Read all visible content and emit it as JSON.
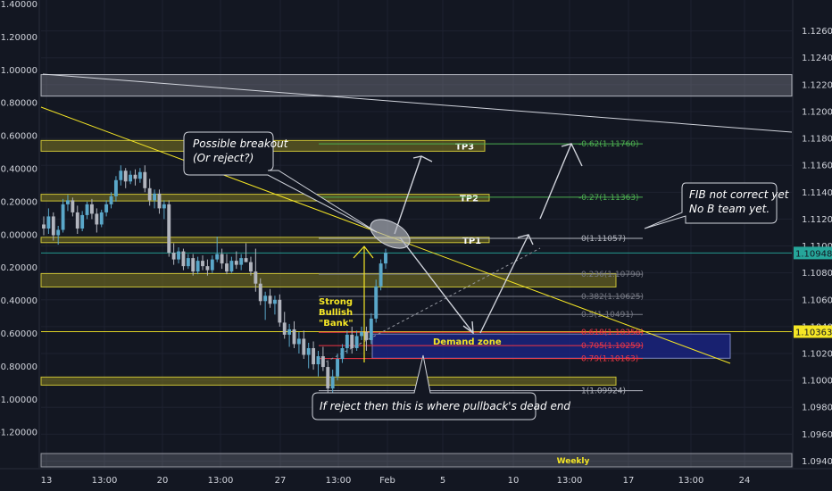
{
  "chart_data": {
    "type": "candlestick",
    "left_axis_ticks": [
      "1.40000",
      "1.20000",
      "1.00000",
      "0.80000",
      "0.60000",
      "0.40000",
      "0.20000",
      "0.00000",
      "-0.20000",
      "-0.40000",
      "-0.60000",
      "-0.80000",
      "-1.00000",
      "-1.20000"
    ],
    "right_axis_ticks": [
      "1.12600",
      "1.12400",
      "1.12200",
      "1.12000",
      "1.11800",
      "1.11600",
      "1.11400",
      "1.11200",
      "1.11000",
      "1.10800",
      "1.10600",
      "1.10400",
      "1.10200",
      "1.10000",
      "1.09800",
      "1.09600",
      "1.09400"
    ],
    "right_axis_range": [
      1.0935,
      1.1283
    ],
    "x_ticks": [
      "13",
      "13:00",
      "20",
      "13:00",
      "27",
      "13:00",
      "Feb",
      "5",
      "10",
      "13:00",
      "17",
      "13:00",
      "24"
    ],
    "price_tags": [
      {
        "value": 1.10948,
        "label": "1.10948",
        "color": "#26a69a"
      },
      {
        "value": 1.10363,
        "label": "1.10363",
        "color": "#f5e625"
      }
    ],
    "zones": [
      {
        "name": "TP3",
        "low": 1.11705,
        "high": 1.11785
      },
      {
        "name": "TP2",
        "low": 1.11335,
        "high": 1.11385
      },
      {
        "name": "TP1",
        "low": 1.11025,
        "high": 1.11065
      },
      {
        "name": "",
        "low": 1.10695,
        "high": 1.10795
      },
      {
        "name": "",
        "low": 1.09965,
        "high": 1.10025
      },
      {
        "name": "",
        "low": 1.12115,
        "high": 1.12275
      }
    ],
    "demand_zone": {
      "label": "Demand zone",
      "low": 1.10165,
      "high": 1.10345
    },
    "fib_levels": [
      {
        "label": "-0.62(1.11760)",
        "value": 1.1176,
        "color": "#4caf50"
      },
      {
        "label": "-0.27(1.11363)",
        "value": 1.11363,
        "color": "#4caf50"
      },
      {
        "label": "0(1.11057)",
        "value": 1.11057,
        "color": "#b2b5be"
      },
      {
        "label": "0.236(1.10790)",
        "value": 1.1079,
        "color": "#787b86"
      },
      {
        "label": "0.382(1.10625)",
        "value": 1.10625,
        "color": "#787b86"
      },
      {
        "label": "0.5(1.10491)",
        "value": 1.10491,
        "color": "#787b86"
      },
      {
        "label": "0.618(1.10358)",
        "value": 1.10358,
        "color": "#f23645"
      },
      {
        "label": "0.705(1.10259)",
        "value": 1.10259,
        "color": "#f23645"
      },
      {
        "label": "0.79(1.10163)",
        "value": 1.10163,
        "color": "#f23645"
      },
      {
        "label": "1(1.09924)",
        "value": 1.09924,
        "color": "#b2b5be"
      }
    ],
    "annotations": {
      "breakout": [
        "Possible breakout",
        "(Or reject?)"
      ],
      "fib_note": [
        "FIB not correct yet",
        "No B team yet."
      ],
      "reject": "If reject then this is where pullback's dead end",
      "strong": [
        "Strong",
        "Bullish",
        "\"Bank\""
      ],
      "weekly": "Weekly"
    },
    "candles": [
      [
        1.1116,
        1.1122,
        1.1108,
        1.1113
      ],
      [
        1.1113,
        1.1128,
        1.1109,
        1.1122
      ],
      [
        1.1122,
        1.1125,
        1.1104,
        1.1108
      ],
      [
        1.1108,
        1.1115,
        1.1101,
        1.1112
      ],
      [
        1.1112,
        1.1135,
        1.111,
        1.1131
      ],
      [
        1.1131,
        1.1138,
        1.1126,
        1.1134
      ],
      [
        1.1134,
        1.1136,
        1.1122,
        1.1125
      ],
      [
        1.1125,
        1.113,
        1.1109,
        1.1113
      ],
      [
        1.1113,
        1.1126,
        1.1111,
        1.1123
      ],
      [
        1.1123,
        1.1133,
        1.112,
        1.1131
      ],
      [
        1.1131,
        1.1135,
        1.112,
        1.1124
      ],
      [
        1.1124,
        1.1128,
        1.111,
        1.1116
      ],
      [
        1.1116,
        1.1127,
        1.1114,
        1.1125
      ],
      [
        1.1125,
        1.1134,
        1.1122,
        1.1131
      ],
      [
        1.1131,
        1.114,
        1.1128,
        1.1137
      ],
      [
        1.1137,
        1.1152,
        1.1133,
        1.1149
      ],
      [
        1.1149,
        1.116,
        1.1145,
        1.1156
      ],
      [
        1.1156,
        1.1158,
        1.1143,
        1.1148
      ],
      [
        1.1148,
        1.1156,
        1.1146,
        1.1153
      ],
      [
        1.1153,
        1.1157,
        1.1145,
        1.115
      ],
      [
        1.115,
        1.1158,
        1.1147,
        1.1155
      ],
      [
        1.1155,
        1.116,
        1.114,
        1.1143
      ],
      [
        1.1143,
        1.115,
        1.113,
        1.1134
      ],
      [
        1.1134,
        1.1142,
        1.1128,
        1.1139
      ],
      [
        1.1139,
        1.1142,
        1.1124,
        1.1128
      ],
      [
        1.1128,
        1.1134,
        1.112,
        1.1131
      ],
      [
        1.1131,
        1.1134,
        1.1092,
        1.1095
      ],
      [
        1.1095,
        1.1102,
        1.1086,
        1.109
      ],
      [
        1.109,
        1.1099,
        1.1087,
        1.1096
      ],
      [
        1.1096,
        1.1098,
        1.1082,
        1.1085
      ],
      [
        1.1085,
        1.1094,
        1.1083,
        1.1091
      ],
      [
        1.1091,
        1.1094,
        1.1078,
        1.1081
      ],
      [
        1.1081,
        1.1092,
        1.1079,
        1.1089
      ],
      [
        1.1089,
        1.1093,
        1.1082,
        1.1085
      ],
      [
        1.1085,
        1.109,
        1.1078,
        1.1082
      ],
      [
        1.1082,
        1.1093,
        1.108,
        1.109
      ],
      [
        1.109,
        1.1107,
        1.1088,
        1.1094
      ],
      [
        1.1094,
        1.1098,
        1.1083,
        1.1087
      ],
      [
        1.1087,
        1.1094,
        1.1079,
        1.1081
      ],
      [
        1.1081,
        1.1092,
        1.108,
        1.1089
      ],
      [
        1.1089,
        1.1096,
        1.1083,
        1.1086
      ],
      [
        1.1086,
        1.1094,
        1.1082,
        1.1091
      ],
      [
        1.1091,
        1.1102,
        1.1088,
        1.1088
      ],
      [
        1.1088,
        1.1092,
        1.1078,
        1.1081
      ],
      [
        1.1081,
        1.1098,
        1.1066,
        1.1072
      ],
      [
        1.1072,
        1.1076,
        1.1056,
        1.1059
      ],
      [
        1.1059,
        1.1066,
        1.1045,
        1.1063
      ],
      [
        1.1063,
        1.1068,
        1.1054,
        1.1057
      ],
      [
        1.1057,
        1.1063,
        1.1049,
        1.106
      ],
      [
        1.106,
        1.1064,
        1.104,
        1.1043
      ],
      [
        1.1043,
        1.1051,
        1.1031,
        1.1034
      ],
      [
        1.1034,
        1.1042,
        1.1025,
        1.1038
      ],
      [
        1.1038,
        1.1044,
        1.1024,
        1.1027
      ],
      [
        1.1027,
        1.1036,
        1.102,
        1.1031
      ],
      [
        1.1031,
        1.1037,
        1.1016,
        1.1019
      ],
      [
        1.1019,
        1.1028,
        1.1009,
        1.1024
      ],
      [
        1.1024,
        1.1029,
        1.1008,
        1.1012
      ],
      [
        1.1012,
        1.1022,
        1.1003,
        1.1018
      ],
      [
        1.1018,
        1.1025,
        1.1007,
        1.101
      ],
      [
        1.101,
        1.1014,
        1.099,
        1.0994
      ],
      [
        1.0994,
        1.1008,
        1.099,
        1.1003
      ],
      [
        1.1003,
        1.102,
        1.1,
        1.1016
      ],
      [
        1.1016,
        1.1027,
        1.1013,
        1.1024
      ],
      [
        1.1024,
        1.1037,
        1.102,
        1.1034
      ],
      [
        1.1034,
        1.104,
        1.102,
        1.1024
      ],
      [
        1.1024,
        1.1037,
        1.1022,
        1.1033
      ],
      [
        1.1033,
        1.104,
        1.103,
        1.1036
      ],
      [
        1.1036,
        1.104,
        1.1022,
        1.103
      ],
      [
        1.103,
        1.105,
        1.1027,
        1.1046
      ],
      [
        1.1046,
        1.1075,
        1.1043,
        1.107
      ],
      [
        1.107,
        1.109,
        1.1067,
        1.1087
      ],
      [
        1.1087,
        1.1098,
        1.1083,
        1.1095
      ]
    ]
  }
}
